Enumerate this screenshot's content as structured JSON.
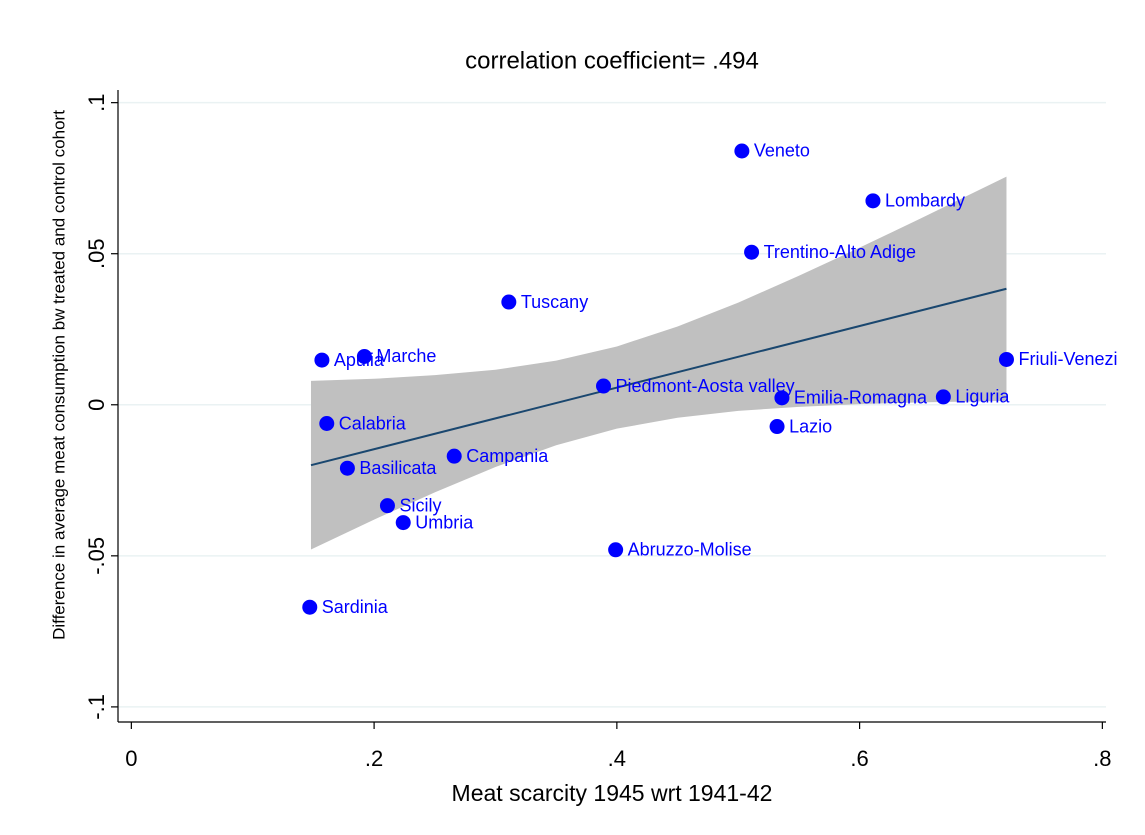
{
  "chart_data": {
    "type": "scatter",
    "title": "correlation coefficient= .494",
    "x_label": "Meat scarcity 1945 wrt 1941-42",
    "y_label": "Difference in average meat consumption bw treated and control cohort",
    "xlim": [
      -0.011,
      0.803
    ],
    "ylim": [
      -0.105,
      0.1075
    ],
    "xticks": [
      0,
      {
        "value": 0.2,
        "label": ".2"
      },
      {
        "value": 0.4,
        "label": ".4"
      },
      {
        "value": 0.6,
        "label": ".6"
      },
      {
        "value": 0.8,
        "label": ".8"
      }
    ],
    "yticks": [
      {
        "value": -0.1,
        "label": "-.1"
      },
      {
        "value": -0.05,
        "label": "-.05"
      },
      0,
      {
        "value": 0.05,
        "label": ".05"
      },
      {
        "value": 0.1,
        "label": ".1"
      }
    ],
    "grid": true,
    "color": "#0000ff",
    "point_labels": [
      "Veneto",
      "Lombardy",
      "Trentino-Alto Adige",
      "Tuscany",
      "Marche",
      "Apulia",
      "Friuli-Venezi",
      "Piedmont-Aosta valley",
      "Emilia-Romagna",
      "Liguria",
      "Calabria",
      "Lazio",
      "Campania",
      "Basilicata",
      "Sicily",
      "Umbria",
      "Abruzzo-Molise",
      "Sardinia"
    ],
    "x": [
      0.503,
      0.611,
      0.511,
      0.311,
      0.192,
      0.157,
      0.721,
      0.389,
      0.536,
      0.669,
      0.161,
      0.532,
      0.266,
      0.178,
      0.211,
      0.224,
      0.399,
      0.147
    ],
    "values": [
      0.084,
      0.0675,
      0.0505,
      0.034,
      0.016,
      0.0148,
      0.015,
      0.0062,
      0.0023,
      0.0026,
      -0.0062,
      -0.0072,
      -0.017,
      -0.021,
      -0.0334,
      -0.039,
      -0.048,
      -0.067
    ],
    "fit": {
      "color": "#1a476f",
      "x": [
        0.148,
        0.721
      ],
      "values": [
        -0.02,
        0.0384
      ]
    },
    "ci": {
      "color": "#c0c0c0",
      "x": [
        0.148,
        0.2,
        0.25,
        0.3,
        0.35,
        0.4,
        0.45,
        0.5,
        0.55,
        0.6,
        0.65,
        0.721
      ],
      "upper": [
        0.0079,
        0.0086,
        0.0098,
        0.0116,
        0.0146,
        0.0193,
        0.0259,
        0.0338,
        0.0427,
        0.052,
        0.0616,
        0.0755
      ],
      "lower": [
        -0.0479,
        -0.038,
        -0.029,
        -0.0206,
        -0.0134,
        -0.0079,
        -0.0043,
        -0.002,
        -0.0007,
        0.0002,
        0.0008,
        0.0013
      ]
    }
  }
}
